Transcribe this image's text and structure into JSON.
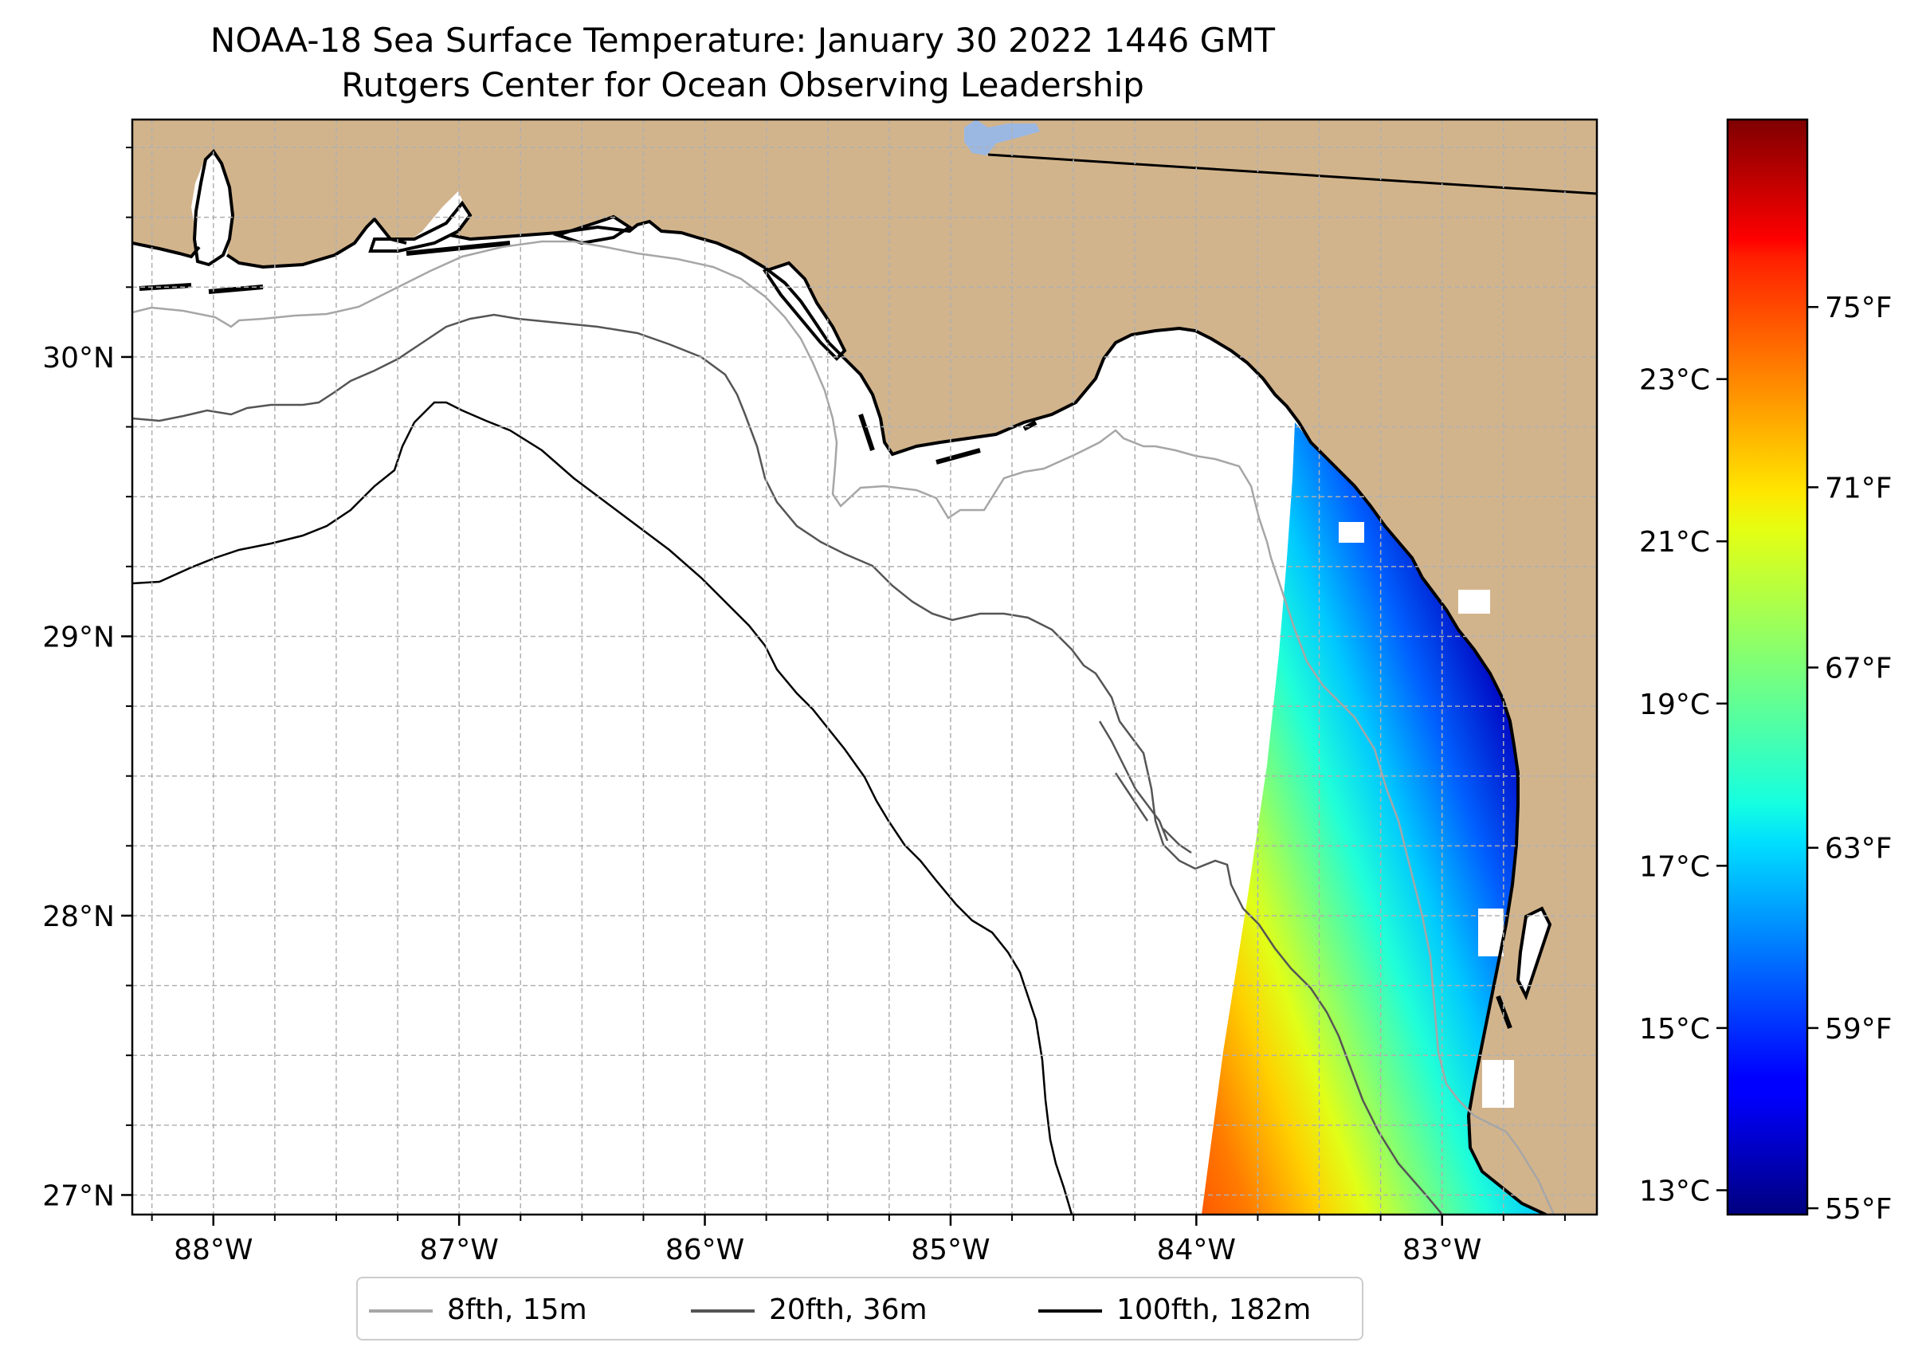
{
  "title": {
    "line1": "NOAA-18 Sea Surface Temperature: January 30 2022 1446 GMT",
    "line2": "Rutgers Center for Ocean Observing Leadership"
  },
  "map": {
    "lon_range": [
      -88.33,
      -82.37
    ],
    "lat_range": [
      26.93,
      30.85
    ],
    "lon_ticks": [
      {
        "value": -88,
        "label": "88°W"
      },
      {
        "value": -87,
        "label": "87°W"
      },
      {
        "value": -86,
        "label": "86°W"
      },
      {
        "value": -85,
        "label": "85°W"
      },
      {
        "value": -84,
        "label": "84°W"
      },
      {
        "value": -83,
        "label": "83°W"
      }
    ],
    "lat_ticks": [
      {
        "value": 27,
        "label": "27°N"
      },
      {
        "value": 28,
        "label": "28°N"
      },
      {
        "value": 29,
        "label": "29°N"
      },
      {
        "value": 30,
        "label": "30°N"
      }
    ],
    "minor_grid_spacing_deg": 0.25,
    "grid": "dashed",
    "land_color": "#d2b48c",
    "ocean_color": "#ffffff",
    "lake_color": "#9bb8e3"
  },
  "colorbar": {
    "colormap": "jet",
    "range_c": [
      12.7,
      26.2
    ],
    "celsius_ticks": [
      {
        "value": 13,
        "label": "13°C"
      },
      {
        "value": 15,
        "label": "15°C"
      },
      {
        "value": 17,
        "label": "17°C"
      },
      {
        "value": 19,
        "label": "19°C"
      },
      {
        "value": 21,
        "label": "21°C"
      },
      {
        "value": 23,
        "label": "23°C"
      }
    ],
    "fahrenheit_ticks": [
      {
        "value": 55,
        "label": "55°F"
      },
      {
        "value": 59,
        "label": "59°F"
      },
      {
        "value": 63,
        "label": "63°F"
      },
      {
        "value": 67,
        "label": "67°F"
      },
      {
        "value": 71,
        "label": "71°F"
      },
      {
        "value": 75,
        "label": "75°F"
      }
    ]
  },
  "legend": {
    "placement": "bottom-center",
    "items": [
      {
        "label": "8fth, 15m",
        "color": "#a6a6a6"
      },
      {
        "label": "20fth, 36m",
        "color": "#555555"
      },
      {
        "label": "100fth, 182m",
        "color": "#000000"
      }
    ]
  },
  "sst_swath": {
    "description_values": "cold (~13°C) near the Florida Big Bend coast, warming offshore to ~23°C toward the southwest",
    "near_coast_c": 13.0,
    "mid_shelf_c": 17.0,
    "southwest_edge_c": 23.0
  }
}
